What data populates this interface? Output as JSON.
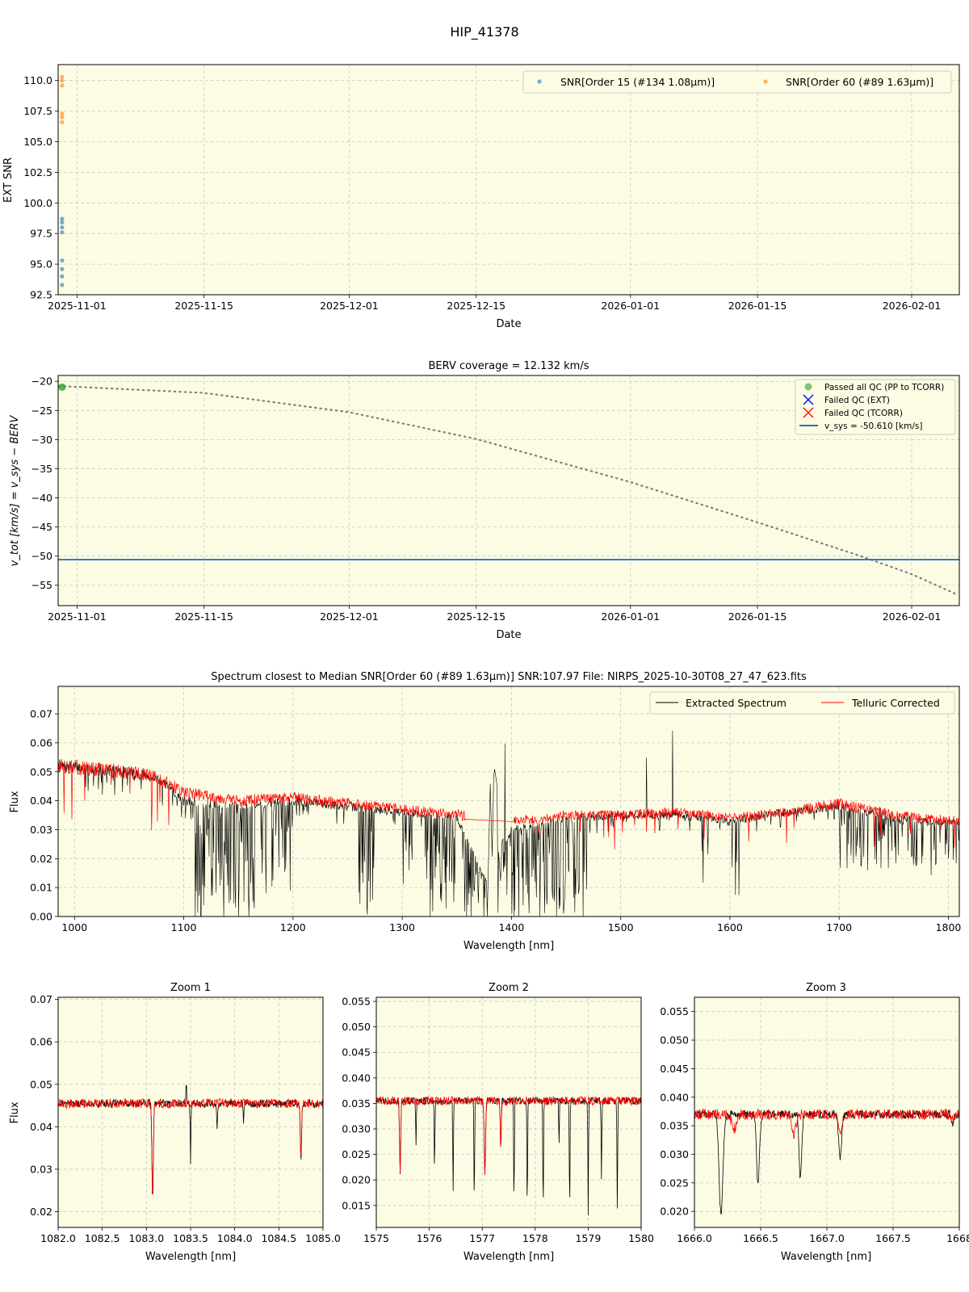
{
  "figure": {
    "title": "HIP_41378"
  },
  "panels": {
    "snr": {
      "xlabel": "Date",
      "ylabel": "EXT SNR",
      "legend": [
        "SNR[Order 15 (#134 1.08μm)]",
        "SNR[Order 60 (#89 1.63μm)]"
      ]
    },
    "berv": {
      "title": "BERV coverage = 12.132 km/s",
      "xlabel": "Date",
      "ylabel": "v_tot [km/s] = v_sys − BERV",
      "legend": [
        "Passed all QC (PP to TCORR)",
        "Failed QC (EXT)",
        "Failed QC (TCORR)",
        "v_sys = -50.610 [km/s]"
      ]
    },
    "spectrum": {
      "title": "Spectrum closest to Median SNR[Order 60 (#89 1.63μm)]     SNR:107.97     File: NIRPS_2025-10-30T08_27_47_623.fits",
      "xlabel": "Wavelength [nm]",
      "ylabel": "Flux",
      "legend": [
        "Extracted Spectrum",
        "Telluric Corrected"
      ]
    },
    "zoom1": {
      "title": "Zoom 1",
      "xlabel": "Wavelength [nm]",
      "ylabel": "Flux"
    },
    "zoom2": {
      "title": "Zoom 2",
      "xlabel": "Wavelength [nm]"
    },
    "zoom3": {
      "title": "Zoom 3",
      "xlabel": "Wavelength [nm]"
    }
  },
  "colors": {
    "axes_bg": "#fcfce4",
    "grid": "#c8c8c8",
    "order15": "#1f77b4",
    "order60": "#ff7f0e",
    "passed": "#2ca02c",
    "failed_ext": "#0000ff",
    "failed_tcorr": "#ff0000",
    "vsys": "#1f77b4",
    "extracted": "#000000",
    "telluric": "#ff0000",
    "berv_curve": "#808080"
  },
  "chart_data": [
    {
      "id": "snr",
      "type": "scatter",
      "x_type": "date",
      "xlim": [
        "2025-10-29T22:00",
        "2026-02-06T06:00"
      ],
      "ylim": [
        92.5,
        111.3
      ],
      "xticks": [
        "2025-11-01",
        "2025-11-15",
        "2025-12-01",
        "2025-12-15",
        "2026-01-01",
        "2026-01-15",
        "2026-02-01"
      ],
      "yticks": [
        92.5,
        95.0,
        97.5,
        100.0,
        102.5,
        105.0,
        107.5,
        110.0
      ],
      "ytick_labels": [
        "92.5",
        "95.0",
        "97.5",
        "100.0",
        "102.5",
        "105.0",
        "107.5",
        "110.0"
      ],
      "grid": true,
      "legend_position": "top-right",
      "series": [
        {
          "name": "SNR[Order 15 (#134 1.08μm)]",
          "x": [
            "2025-10-30T08:27",
            "2025-10-30T08:27",
            "2025-10-30T08:27",
            "2025-10-30T08:27",
            "2025-10-30T08:27",
            "2025-10-30T08:27",
            "2025-10-30T08:27",
            "2025-10-30T08:27"
          ],
          "y": [
            93.3,
            94.0,
            94.6,
            95.3,
            97.6,
            98.0,
            98.4,
            98.7
          ]
        },
        {
          "name": "SNR[Order 60 (#89 1.63μm)]",
          "x": [
            "2025-10-30T08:27",
            "2025-10-30T08:27",
            "2025-10-30T08:27",
            "2025-10-30T08:27",
            "2025-10-30T08:27",
            "2025-10-30T08:27"
          ],
          "y": [
            106.6,
            107.0,
            107.3,
            109.6,
            110.0,
            110.3
          ]
        }
      ]
    },
    {
      "id": "berv",
      "type": "line",
      "x_type": "date",
      "xlim": [
        "2025-10-29T22:00",
        "2026-02-06T06:00"
      ],
      "ylim": [
        -58.5,
        -19.0
      ],
      "xticks": [
        "2025-11-01",
        "2025-11-15",
        "2025-12-01",
        "2025-12-15",
        "2026-01-01",
        "2026-01-15",
        "2026-02-01"
      ],
      "yticks": [
        -55,
        -50,
        -45,
        -40,
        -35,
        -30,
        -25,
        -20
      ],
      "ytick_labels": [
        "−55",
        "−50",
        "−45",
        "−40",
        "−35",
        "−30",
        "−25",
        "−20"
      ],
      "grid": true,
      "legend_position": "top-right",
      "curve": {
        "x": [
          "2025-10-30",
          "2025-11-15",
          "2025-12-01",
          "2025-12-15",
          "2026-01-01",
          "2026-01-15",
          "2026-01-26",
          "2026-02-01",
          "2026-02-06"
        ],
        "y": [
          -20.8,
          -22.0,
          -25.3,
          -29.9,
          -37.3,
          -44.2,
          -49.8,
          -53.1,
          -56.6
        ]
      },
      "passed": {
        "x": [
          "2025-10-30T08:27"
        ],
        "y": [
          -21.0
        ]
      },
      "vsys": -50.61
    },
    {
      "id": "spectrum",
      "type": "line",
      "xlim": [
        985,
        1810
      ],
      "ylim": [
        0,
        0.0795
      ],
      "xticks": [
        1000,
        1100,
        1200,
        1300,
        1400,
        1500,
        1600,
        1700,
        1800
      ],
      "yticks": [
        0.0,
        0.01,
        0.02,
        0.03,
        0.04,
        0.05,
        0.06,
        0.07
      ],
      "ytick_labels": [
        "0.00",
        "0.01",
        "0.02",
        "0.03",
        "0.04",
        "0.05",
        "0.06",
        "0.07"
      ],
      "grid": true,
      "legend_position": "top-right",
      "series": [
        {
          "name": "Extracted Spectrum",
          "x": [
            985,
            1050,
            1075,
            1100,
            1150,
            1200,
            1250,
            1300,
            1350,
            1380,
            1400,
            1450,
            1500,
            1550,
            1600,
            1650,
            1700,
            1750,
            1810
          ],
          "y": [
            0.052,
            0.05,
            0.048,
            0.04,
            0.038,
            0.04,
            0.038,
            0.036,
            0.034,
            0.01,
            0.03,
            0.034,
            0.035,
            0.035,
            0.033,
            0.036,
            0.038,
            0.034,
            0.032
          ]
        },
        {
          "name": "Telluric Corrected",
          "x": [
            985,
            1050,
            1075,
            1100,
            1150,
            1200,
            1250,
            1300,
            1355,
            1405,
            1450,
            1500,
            1550,
            1600,
            1650,
            1700,
            1750,
            1810
          ],
          "y": [
            0.052,
            0.05,
            0.048,
            0.043,
            0.04,
            0.041,
            0.039,
            0.037,
            0.035,
            0.033,
            0.035,
            0.035,
            0.036,
            0.034,
            0.036,
            0.039,
            0.035,
            0.033
          ]
        }
      ]
    },
    {
      "id": "zoom1",
      "type": "line",
      "xlim": [
        1082.0,
        1085.0
      ],
      "ylim": [
        0.0163,
        0.0705
      ],
      "xticks": [
        1082.0,
        1082.5,
        1083.0,
        1083.5,
        1084.0,
        1084.5,
        1085.0
      ],
      "xtick_labels": [
        "1082.0",
        "1082.5",
        "1083.0",
        "1083.5",
        "1084.0",
        "1084.5",
        "1085.0"
      ],
      "yticks": [
        0.02,
        0.03,
        0.04,
        0.05,
        0.06,
        0.07
      ],
      "ytick_labels": [
        "0.02",
        "0.03",
        "0.04",
        "0.05",
        "0.06",
        "0.07"
      ],
      "grid": true,
      "continuum": 0.0455,
      "extracted_lines": [
        [
          1083.07,
          0.0225,
          0.025
        ],
        [
          1083.5,
          0.0315,
          0.012
        ],
        [
          1083.8,
          0.0395,
          0.015
        ],
        [
          1084.1,
          0.0415,
          0.015
        ],
        [
          1084.75,
          0.0315,
          0.022
        ]
      ],
      "telluric_lines": [
        [
          1083.07,
          0.023,
          0.025
        ],
        [
          1084.75,
          0.032,
          0.022
        ]
      ],
      "spikes": [
        [
          1083.45,
          0.0497
        ]
      ]
    },
    {
      "id": "zoom2",
      "type": "line",
      "xlim": [
        1575,
        1580
      ],
      "ylim": [
        0.0107,
        0.0558
      ],
      "xticks": [
        1575,
        1576,
        1577,
        1578,
        1579,
        1580
      ],
      "xtick_labels": [
        "1575",
        "1576",
        "1577",
        "1578",
        "1579",
        "1580"
      ],
      "yticks": [
        0.015,
        0.02,
        0.025,
        0.03,
        0.035,
        0.04,
        0.045,
        0.05,
        0.055
      ],
      "ytick_labels": [
        "0.015",
        "0.020",
        "0.025",
        "0.030",
        "0.035",
        "0.040",
        "0.045",
        "0.050",
        "0.055"
      ],
      "grid": true,
      "continuum": 0.0355,
      "extracted_lines": [
        [
          1575.45,
          0.0215,
          0.035
        ],
        [
          1575.75,
          0.0265,
          0.02
        ],
        [
          1576.1,
          0.0213,
          0.02
        ],
        [
          1576.45,
          0.0175,
          0.02
        ],
        [
          1576.85,
          0.0147,
          0.02
        ],
        [
          1577.05,
          0.0205,
          0.04
        ],
        [
          1577.35,
          0.0255,
          0.03
        ],
        [
          1577.6,
          0.0138,
          0.02
        ],
        [
          1577.85,
          0.0135,
          0.02
        ],
        [
          1578.15,
          0.0135,
          0.02
        ],
        [
          1578.45,
          0.0275,
          0.02
        ],
        [
          1578.65,
          0.013,
          0.02
        ],
        [
          1579.0,
          0.0135,
          0.02
        ],
        [
          1579.25,
          0.0195,
          0.02
        ],
        [
          1579.55,
          0.0135,
          0.02
        ]
      ],
      "telluric_lines": [
        [
          1575.45,
          0.0215,
          0.035
        ],
        [
          1577.05,
          0.0205,
          0.04
        ],
        [
          1577.35,
          0.0265,
          0.03
        ]
      ]
    },
    {
      "id": "zoom3",
      "type": "line",
      "xlim": [
        1666.0,
        1668.0
      ],
      "ylim": [
        0.0172,
        0.0575
      ],
      "xticks": [
        1666.0,
        1666.5,
        1667.0,
        1667.5,
        1668.0
      ],
      "xtick_labels": [
        "1666.0",
        "1666.5",
        "1667.0",
        "1667.5",
        "1668"
      ],
      "yticks": [
        0.02,
        0.025,
        0.03,
        0.035,
        0.04,
        0.045,
        0.05,
        0.055
      ],
      "ytick_labels": [
        "0.020",
        "0.025",
        "0.030",
        "0.035",
        "0.040",
        "0.045",
        "0.050",
        "0.055"
      ],
      "grid": true,
      "continuum": 0.037,
      "extracted_lines": [
        [
          1666.2,
          0.0195,
          0.045
        ],
        [
          1666.48,
          0.0245,
          0.035
        ],
        [
          1666.8,
          0.0255,
          0.03
        ],
        [
          1667.1,
          0.029,
          0.035
        ],
        [
          1667.95,
          0.0355,
          0.03
        ]
      ],
      "telluric_lines": [
        [
          1666.3,
          0.0345,
          0.06
        ],
        [
          1666.75,
          0.0335,
          0.05
        ],
        [
          1667.1,
          0.0335,
          0.04
        ],
        [
          1667.95,
          0.036,
          0.03
        ]
      ]
    }
  ]
}
